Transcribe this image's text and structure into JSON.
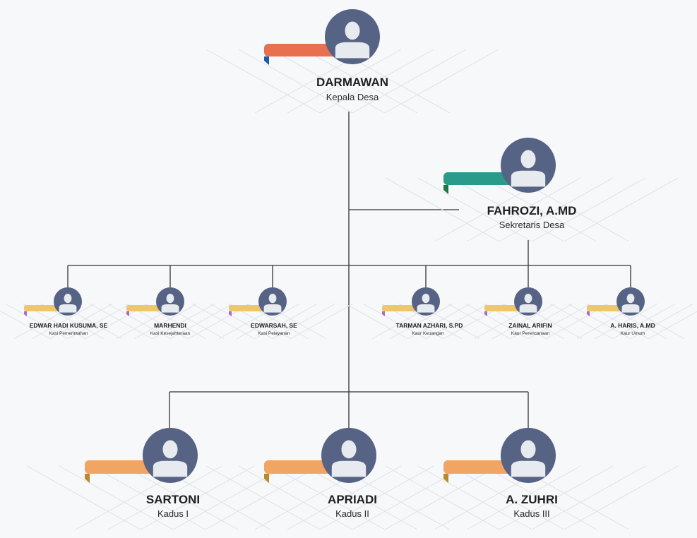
{
  "colors": {
    "avatar": "#566384",
    "silhouette": "#e7eaee",
    "line": "#333333",
    "ribbon_head": "#e8704f",
    "ribbon_head_fold": "#1f5aa6",
    "ribbon_secretary": "#2a9b8b",
    "ribbon_secretary_fold": "#1d7a3a",
    "ribbon_staff": "#ecc76b",
    "ribbon_staff_fold": "#b06ac2",
    "ribbon_kadus": "#f2a462",
    "ribbon_kadus_fold": "#b88a2a"
  },
  "org": {
    "head": {
      "name": "DARMAWAN",
      "role": "Kepala Desa"
    },
    "secretary": {
      "name": "FAHROZI, A.MD",
      "role": "Sekretaris Desa"
    },
    "staff": [
      {
        "name": "EDWAR HADI KUSUMA, SE",
        "role": "Kasi Pemerintahan"
      },
      {
        "name": "MARHENDI",
        "role": "Kasi Kesejahteraan"
      },
      {
        "name": "EDWARSAH, SE",
        "role": "Kasi Pelayanan"
      },
      {
        "name": "TARMAN AZHARI, S.PD",
        "role": "Kaur Keuangan"
      },
      {
        "name": "ZAINAL ARIFIN",
        "role": "Kaur Perencanaan"
      },
      {
        "name": "A. HARIS, A.MD",
        "role": "Kaur Umum"
      }
    ],
    "kadus": [
      {
        "name": "SARTONI",
        "role": "Kadus I"
      },
      {
        "name": "APRIADI",
        "role": "Kadus II"
      },
      {
        "name": "A. ZUHRI",
        "role": "Kadus III"
      }
    ]
  }
}
